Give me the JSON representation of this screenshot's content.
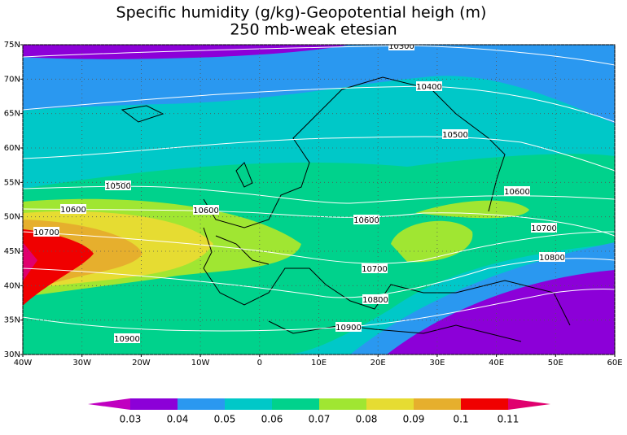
{
  "title": [
    "Specific humidity (g/kg)-Geopotential heigh (m)",
    "250 mb-weak etesian"
  ],
  "lat_ticks": [
    {
      "value": 30,
      "label": "30N"
    },
    {
      "value": 35,
      "label": "35N"
    },
    {
      "value": 40,
      "label": "40N"
    },
    {
      "value": 45,
      "label": "45N"
    },
    {
      "value": 50,
      "label": "50N"
    },
    {
      "value": 55,
      "label": "55N"
    },
    {
      "value": 60,
      "label": "60N"
    },
    {
      "value": 65,
      "label": "65N"
    },
    {
      "value": 70,
      "label": "70N"
    },
    {
      "value": 75,
      "label": "75N"
    }
  ],
  "lon_ticks": [
    {
      "value": -40,
      "label": "40W"
    },
    {
      "value": -30,
      "label": "30W"
    },
    {
      "value": -20,
      "label": "20W"
    },
    {
      "value": -10,
      "label": "10W"
    },
    0,
    {
      "value": 10,
      "label": "10E"
    },
    {
      "value": 20,
      "label": "20E"
    },
    {
      "value": 30,
      "label": "30E"
    },
    {
      "value": 40,
      "label": "40E"
    },
    {
      "value": 50,
      "label": "50E"
    },
    {
      "value": 60,
      "label": "60E"
    }
  ],
  "lat_range": [
    30,
    75
  ],
  "lon_range": [
    -40,
    60
  ],
  "contour_labels": [
    10300,
    10400,
    10500,
    10500,
    10600,
    10600,
    10600,
    10600,
    10700,
    10700,
    10700,
    10800,
    10800,
    10900,
    10900
  ],
  "colorbar": {
    "levels": [
      0.03,
      0.04,
      0.05,
      0.06,
      0.07,
      0.08,
      0.09,
      0.1,
      0.11
    ],
    "colors": [
      "#c000c0",
      "#8c00d8",
      "#2a98f0",
      "#00c8c8",
      "#00d28c",
      "#a0e632",
      "#e6dc32",
      "#e6af2d",
      "#f00000",
      "#e0006e"
    ]
  }
}
